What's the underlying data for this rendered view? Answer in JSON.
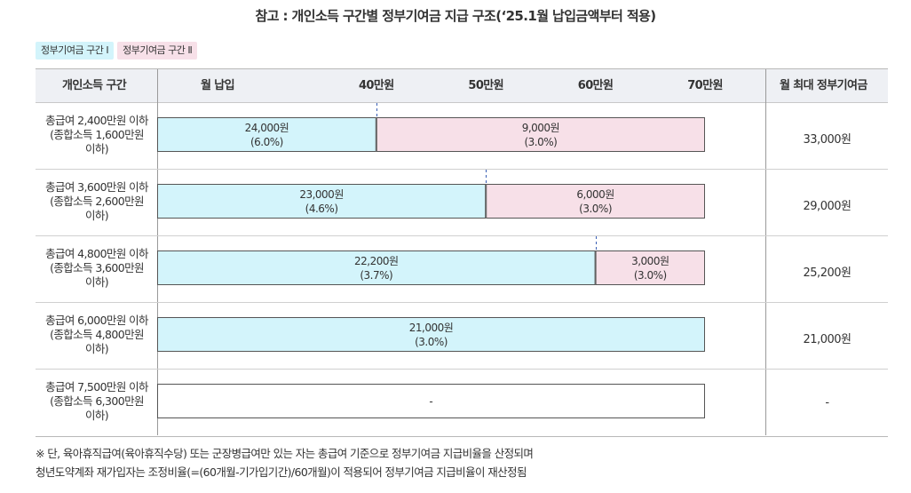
{
  "title": "참고 : 개인소득 구간별 정부기여금 지급 구조(‘25.1월 납입금액부터 적용)",
  "legend": [
    {
      "label": "정부기여금 구간 Ⅰ",
      "color": "#d3f4fb"
    },
    {
      "label": "정부기여금 구간 Ⅱ",
      "color": "#f7e0e8"
    }
  ],
  "colors": {
    "segment1": "#d3f4fb",
    "segment2": "#f7e0e8",
    "border": "#555555",
    "dashed": "#3a5fb4"
  },
  "headers": {
    "income": "개인소득 구간",
    "monthly": "월 납입",
    "max": "월 최대 정부기여금"
  },
  "chart_data": {
    "type": "bar",
    "orientation": "horizontal",
    "stacked": true,
    "xlim": [
      20,
      70
    ],
    "x_unit": "만원",
    "x_ticks": [
      {
        "value": 40,
        "label": "40만원"
      },
      {
        "value": 50,
        "label": "50만원"
      },
      {
        "value": 60,
        "label": "60만원"
      },
      {
        "value": 70,
        "label": "70만원"
      }
    ],
    "rows": [
      {
        "label": "총급여 2,400만원 이하\n(종합소득 1,600만원\n이하)",
        "max": "33,000원",
        "segments": [
          {
            "tier": 1,
            "start": 20,
            "end": 40,
            "amount": "24,000원",
            "rate": "(6.0%)"
          },
          {
            "tier": 2,
            "start": 40,
            "end": 70,
            "amount": "9,000원",
            "rate": "(3.0%)"
          }
        ]
      },
      {
        "label": "총급여 3,600만원 이하\n(종합소득 2,600만원\n이하)",
        "max": "29,000원",
        "segments": [
          {
            "tier": 1,
            "start": 20,
            "end": 50,
            "amount": "23,000원",
            "rate": "(4.6%)"
          },
          {
            "tier": 2,
            "start": 50,
            "end": 70,
            "amount": "6,000원",
            "rate": "(3.0%)"
          }
        ]
      },
      {
        "label": "총급여 4,800만원 이하\n(종합소득 3,600만원\n이하)",
        "max": "25,200원",
        "segments": [
          {
            "tier": 1,
            "start": 20,
            "end": 60,
            "amount": "22,200원",
            "rate": "(3.7%)"
          },
          {
            "tier": 2,
            "start": 60,
            "end": 70,
            "amount": "3,000원",
            "rate": "(3.0%)"
          }
        ]
      },
      {
        "label": "총급여 6,000만원 이하\n(종합소득 4,800만원\n이하)",
        "max": "21,000원",
        "segments": [
          {
            "tier": 1,
            "start": 20,
            "end": 70,
            "amount": "21,000원",
            "rate": "(3.0%)"
          }
        ]
      },
      {
        "label": "총급여 7,500만원 이하\n(종합소득 6,300만원\n이하)",
        "max": "-",
        "segments": [
          {
            "tier": 0,
            "start": 20,
            "end": 70,
            "amount": "-",
            "rate": ""
          }
        ]
      }
    ]
  },
  "notes": [
    "※ 단, 육아휴직급여(육아휴직수당) 또는 군장병급여만 있는 자는 총급여 기준으로 정부기여금 지급비율을 산정되며",
    "청년도약계좌 재가입자는 조정비율(=(60개월-기가입기간)/60개월)이 적용되어 정부기여금 지급비율이 재산정됨"
  ]
}
